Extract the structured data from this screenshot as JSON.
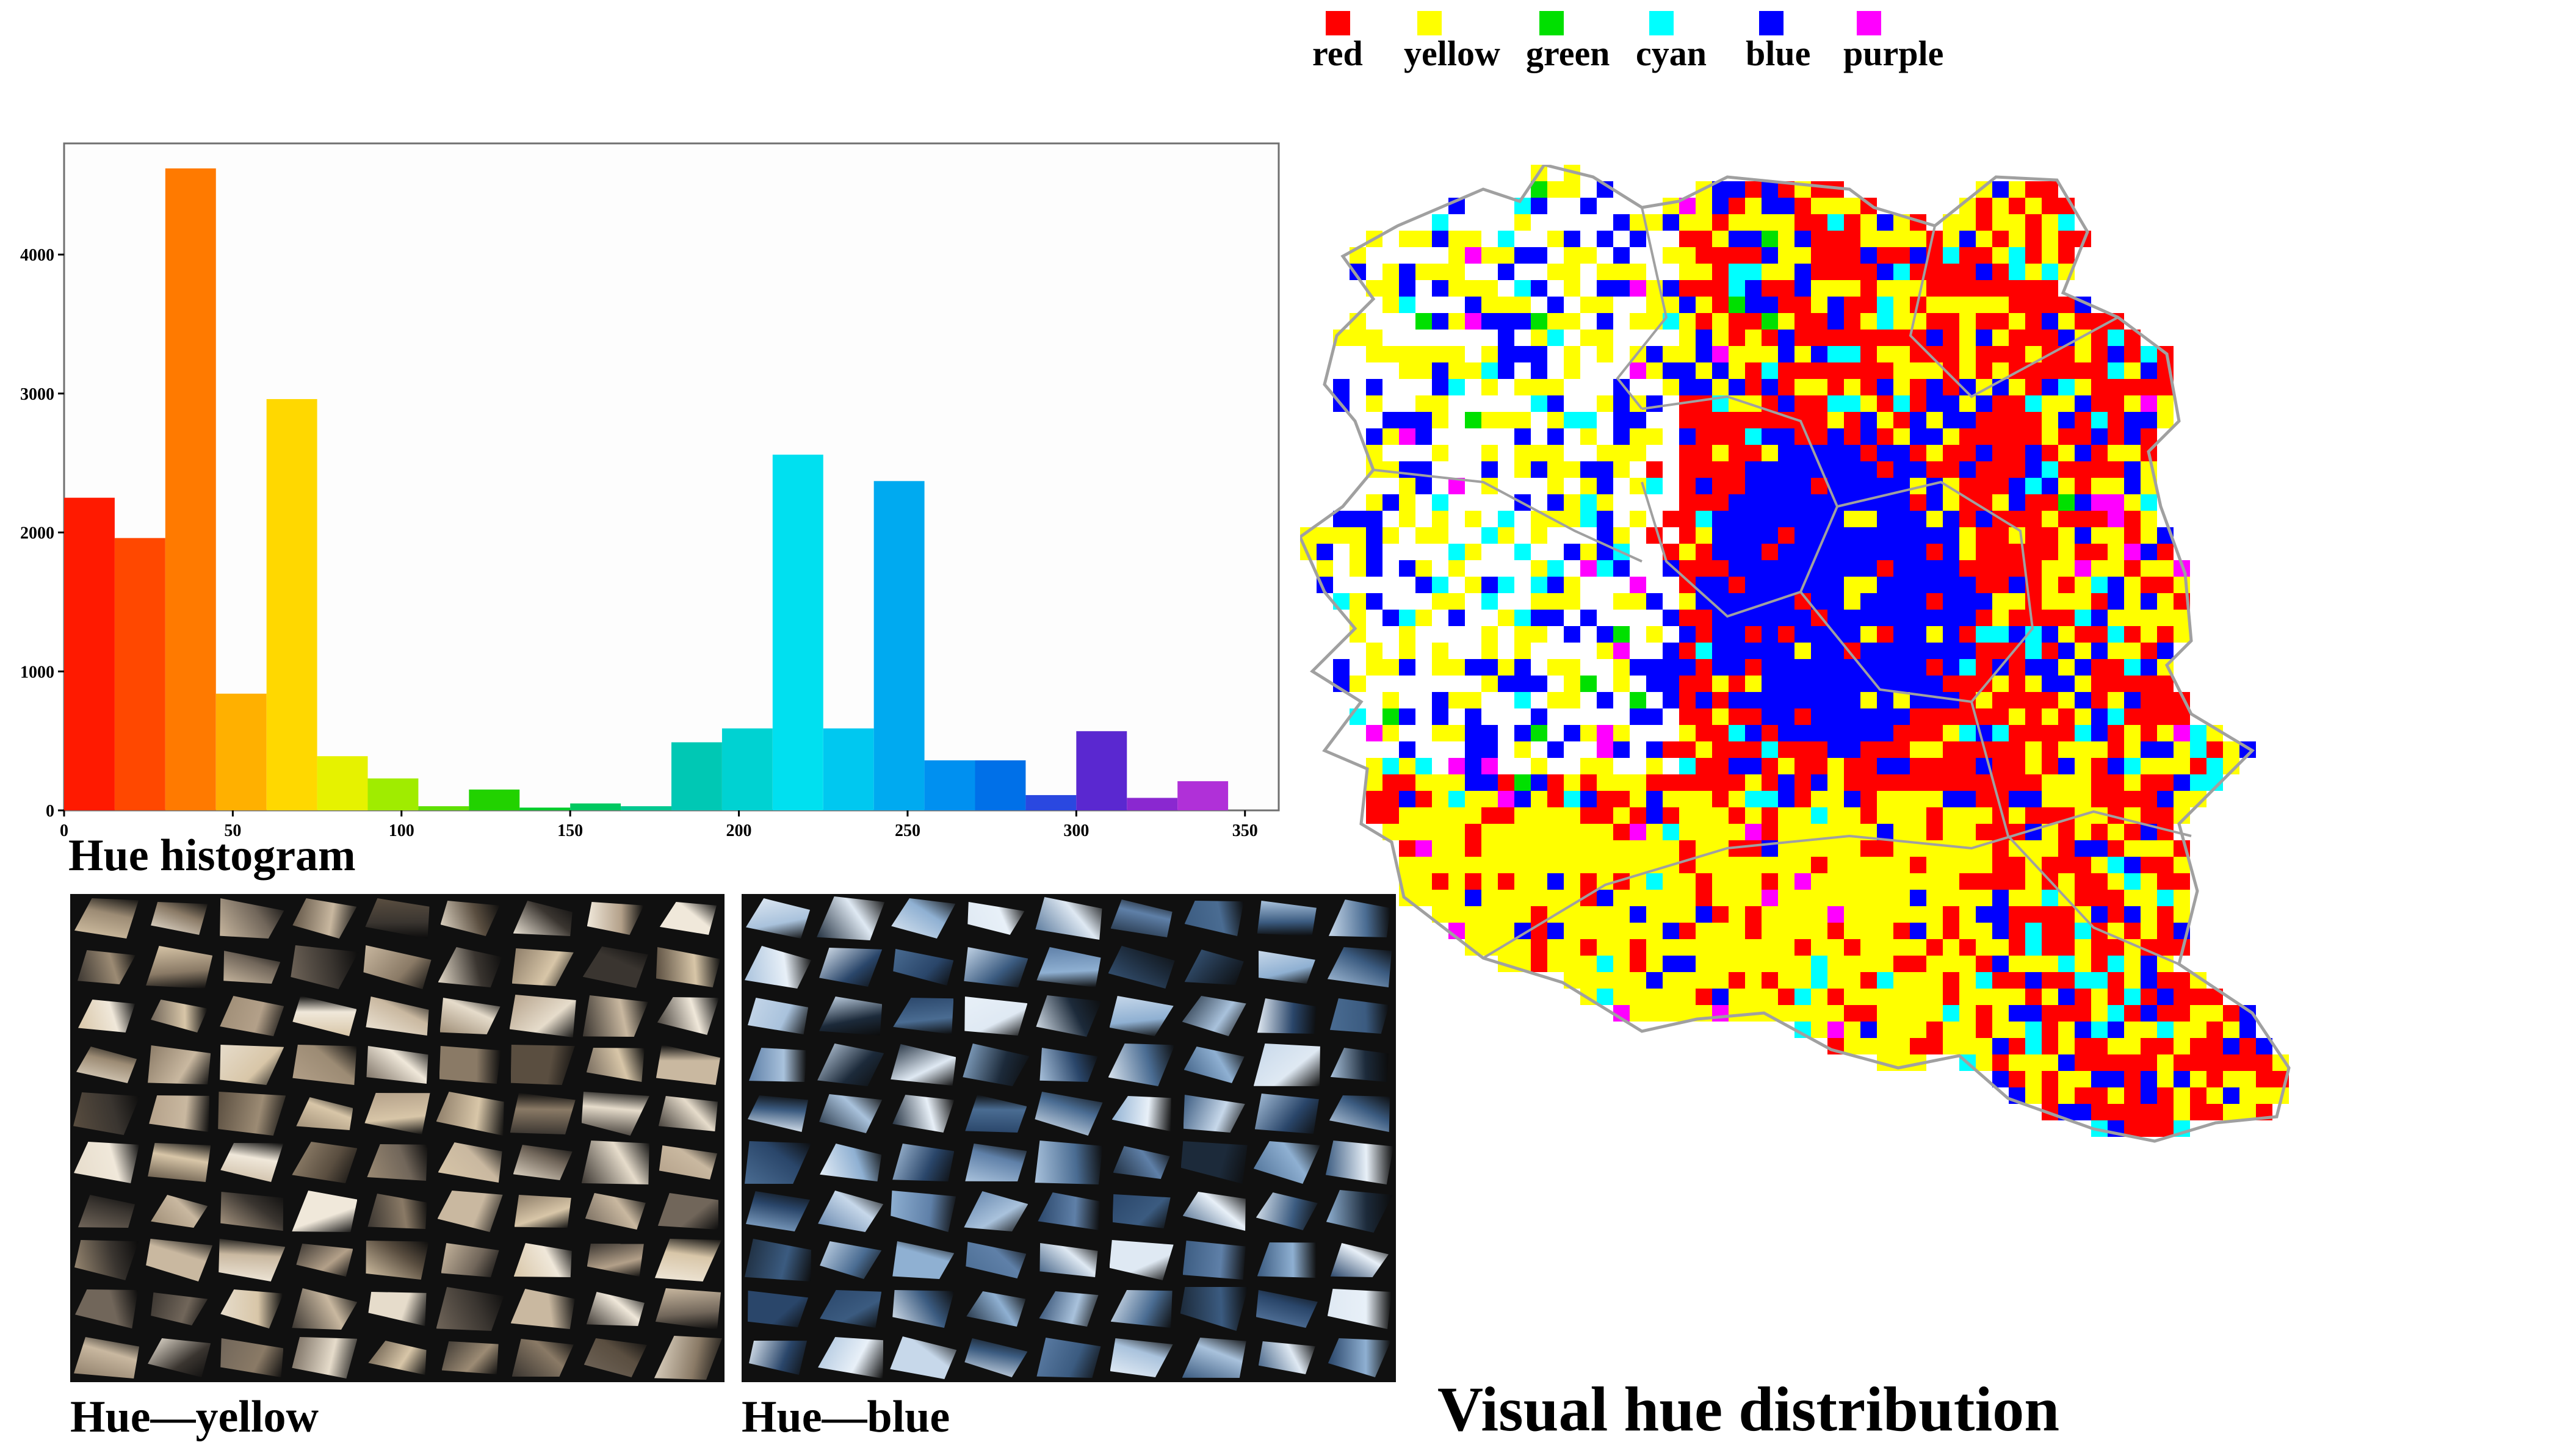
{
  "legend": {
    "items": [
      {
        "label": "red",
        "color": "#ff0000"
      },
      {
        "label": "yellow",
        "color": "#ffff00"
      },
      {
        "label": "green",
        "color": "#00e000"
      },
      {
        "label": "cyan",
        "color": "#00ffff"
      },
      {
        "label": "blue",
        "color": "#0000ff"
      },
      {
        "label": "purple",
        "color": "#ff00ff"
      }
    ]
  },
  "chart_data": [
    {
      "type": "bar",
      "title": "Hue histogram",
      "xlabel": "",
      "ylabel": "",
      "xlim": [
        0,
        350
      ],
      "ylim": [
        0,
        4800
      ],
      "x_ticks": [
        "0",
        "50",
        "100",
        "150",
        "200",
        "250",
        "300",
        "350"
      ],
      "y_ticks": [
        "0",
        "1000",
        "2000",
        "3000",
        "4000"
      ],
      "bin_width": 15,
      "bins": [
        {
          "start": 0,
          "value": 2250,
          "color": "#ff1a00"
        },
        {
          "start": 15,
          "value": 1960,
          "color": "#ff4800"
        },
        {
          "start": 30,
          "value": 4620,
          "color": "#ff7a00"
        },
        {
          "start": 45,
          "value": 840,
          "color": "#ffb000"
        },
        {
          "start": 60,
          "value": 2960,
          "color": "#ffd800"
        },
        {
          "start": 75,
          "value": 390,
          "color": "#e6f200"
        },
        {
          "start": 90,
          "value": 230,
          "color": "#a0ec00"
        },
        {
          "start": 105,
          "value": 30,
          "color": "#5ee000"
        },
        {
          "start": 120,
          "value": 150,
          "color": "#22d200"
        },
        {
          "start": 135,
          "value": 20,
          "color": "#00cc2a"
        },
        {
          "start": 150,
          "value": 50,
          "color": "#00c860"
        },
        {
          "start": 165,
          "value": 30,
          "color": "#00c890"
        },
        {
          "start": 180,
          "value": 490,
          "color": "#00c8b4"
        },
        {
          "start": 195,
          "value": 590,
          "color": "#00d2d2"
        },
        {
          "start": 210,
          "value": 2560,
          "color": "#00e0f0"
        },
        {
          "start": 225,
          "value": 590,
          "color": "#00c8f0"
        },
        {
          "start": 240,
          "value": 2370,
          "color": "#00aaf0"
        },
        {
          "start": 255,
          "value": 360,
          "color": "#0090f0"
        },
        {
          "start": 270,
          "value": 360,
          "color": "#0070e8"
        },
        {
          "start": 285,
          "value": 110,
          "color": "#2a48e0"
        },
        {
          "start": 300,
          "value": 570,
          "color": "#5a28d0"
        },
        {
          "start": 315,
          "value": 90,
          "color": "#8a28d0"
        },
        {
          "start": 330,
          "value": 210,
          "color": "#b030d8"
        }
      ]
    },
    {
      "type": "heatmap",
      "title": "Visual hue distribution",
      "categories": [
        "red",
        "yellow",
        "green",
        "cyan",
        "blue",
        "purple"
      ]
    }
  ],
  "panels": {
    "yellow": {
      "label": "Hue—yellow",
      "tones": [
        "#3a3530",
        "#c9b8a0",
        "#8a7a66",
        "#e6dccb",
        "#5a4e40",
        "#b3a089",
        "#f0e8da",
        "#71665a",
        "#d8c6a8",
        "#9c8b74"
      ]
    },
    "blue": {
      "label": "Hue—blue",
      "tones": [
        "#1c2a3a",
        "#8fb0d2",
        "#c7d8ea",
        "#3b5b80",
        "#e8f0f8",
        "#5f80a8",
        "#2a466a",
        "#a9c2dc",
        "#dfe9f3",
        "#4a6c92"
      ]
    }
  }
}
